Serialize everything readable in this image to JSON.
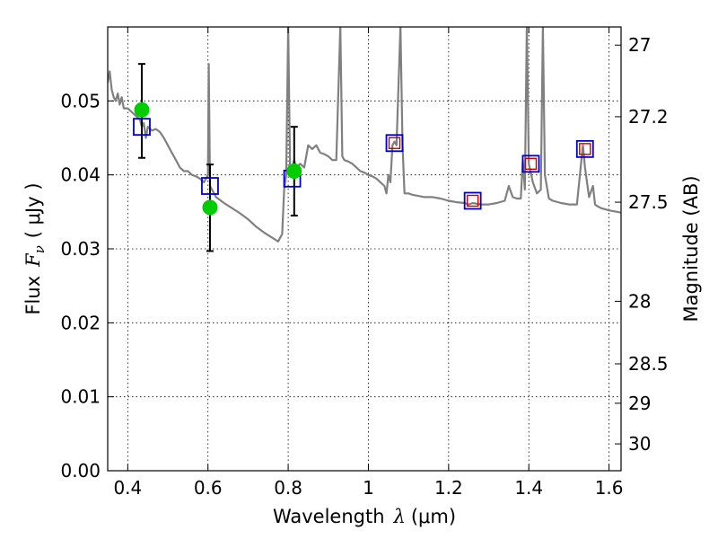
{
  "chart_data": {
    "type": "line",
    "xlabel": {
      "prefix": "Wavelength",
      "symbol": "λ",
      "unit": "(μm)"
    },
    "ylabel": {
      "prefix": "Flux",
      "symbol": "F",
      "subscript": "ν",
      "unit": "( μJy )"
    },
    "y2label": "Magnitude (AB)",
    "xlim": [
      0.35,
      1.63
    ],
    "ylim": [
      0.0,
      0.06
    ],
    "grid": true,
    "x_ticks": [
      {
        "v": 0.4,
        "label": "0.4"
      },
      {
        "v": 0.6,
        "label": "0.6"
      },
      {
        "v": 0.8,
        "label": "0.8"
      },
      {
        "v": 1.0,
        "label": "1"
      },
      {
        "v": 1.2,
        "label": "1.2"
      },
      {
        "v": 1.4,
        "label": "1.4"
      },
      {
        "v": 1.6,
        "label": "1.6"
      }
    ],
    "y_ticks": [
      {
        "v": 0.0,
        "label": "0.00"
      },
      {
        "v": 0.01,
        "label": "0.01"
      },
      {
        "v": 0.02,
        "label": "0.02"
      },
      {
        "v": 0.03,
        "label": "0.03"
      },
      {
        "v": 0.04,
        "label": "0.04"
      },
      {
        "v": 0.05,
        "label": "0.05"
      }
    ],
    "y2_ticks": [
      {
        "mag": 27.0,
        "label": "27"
      },
      {
        "mag": 27.2,
        "label": "27.2"
      },
      {
        "mag": 27.5,
        "label": "27.5"
      },
      {
        "mag": 28.0,
        "label": "28"
      },
      {
        "mag": 28.5,
        "label": "28.5"
      },
      {
        "mag": 29.0,
        "label": "29"
      },
      {
        "mag": 30.0,
        "label": "30"
      }
    ],
    "colors": {
      "model": "#808080",
      "observed": "#00cc00",
      "model_band": "#0000cc",
      "model_band_inner": "#cc0000",
      "errorbar": "#000000"
    },
    "model_sed": [
      [
        0.35,
        0.0525
      ],
      [
        0.355,
        0.054
      ],
      [
        0.36,
        0.0515
      ],
      [
        0.365,
        0.0505
      ],
      [
        0.37,
        0.05
      ],
      [
        0.375,
        0.051
      ],
      [
        0.38,
        0.0495
      ],
      [
        0.385,
        0.0505
      ],
      [
        0.39,
        0.049
      ],
      [
        0.4,
        0.049
      ],
      [
        0.41,
        0.0485
      ],
      [
        0.42,
        0.048
      ],
      [
        0.43,
        0.0475
      ],
      [
        0.435,
        0.0465
      ],
      [
        0.44,
        0.047
      ],
      [
        0.445,
        0.045
      ],
      [
        0.45,
        0.0465
      ],
      [
        0.46,
        0.046
      ],
      [
        0.47,
        0.0462
      ],
      [
        0.48,
        0.0458
      ],
      [
        0.49,
        0.045
      ],
      [
        0.5,
        0.044
      ],
      [
        0.51,
        0.043
      ],
      [
        0.52,
        0.042
      ],
      [
        0.53,
        0.041
      ],
      [
        0.54,
        0.0405
      ],
      [
        0.55,
        0.0405
      ],
      [
        0.56,
        0.04
      ],
      [
        0.57,
        0.0398
      ],
      [
        0.58,
        0.0395
      ],
      [
        0.59,
        0.039
      ],
      [
        0.6,
        0.04
      ],
      [
        0.602,
        0.055
      ],
      [
        0.605,
        0.0385
      ],
      [
        0.62,
        0.037
      ],
      [
        0.64,
        0.0362
      ],
      [
        0.66,
        0.0355
      ],
      [
        0.68,
        0.0348
      ],
      [
        0.7,
        0.034
      ],
      [
        0.72,
        0.033
      ],
      [
        0.74,
        0.0322
      ],
      [
        0.76,
        0.0315
      ],
      [
        0.775,
        0.031
      ],
      [
        0.785,
        0.032
      ],
      [
        0.79,
        0.038
      ],
      [
        0.795,
        0.04
      ],
      [
        0.8,
        0.062
      ],
      [
        0.805,
        0.04
      ],
      [
        0.81,
        0.041
      ],
      [
        0.815,
        0.042
      ],
      [
        0.82,
        0.041
      ],
      [
        0.83,
        0.0415
      ],
      [
        0.84,
        0.041
      ],
      [
        0.85,
        0.044
      ],
      [
        0.86,
        0.0435
      ],
      [
        0.87,
        0.044
      ],
      [
        0.88,
        0.043
      ],
      [
        0.89,
        0.0428
      ],
      [
        0.9,
        0.0425
      ],
      [
        0.91,
        0.042
      ],
      [
        0.92,
        0.042
      ],
      [
        0.93,
        0.062
      ],
      [
        0.935,
        0.0425
      ],
      [
        0.94,
        0.042
      ],
      [
        0.95,
        0.0418
      ],
      [
        0.96,
        0.0415
      ],
      [
        0.97,
        0.041
      ],
      [
        0.98,
        0.0405
      ],
      [
        0.99,
        0.0403
      ],
      [
        1.0,
        0.04
      ],
      [
        1.01,
        0.0398
      ],
      [
        1.02,
        0.0395
      ],
      [
        1.03,
        0.039
      ],
      [
        1.04,
        0.0385
      ],
      [
        1.045,
        0.0375
      ],
      [
        1.05,
        0.04
      ],
      [
        1.055,
        0.039
      ],
      [
        1.06,
        0.044
      ],
      [
        1.065,
        0.0445
      ],
      [
        1.07,
        0.044
      ],
      [
        1.08,
        0.062
      ],
      [
        1.085,
        0.044
      ],
      [
        1.09,
        0.0375
      ],
      [
        1.1,
        0.0375
      ],
      [
        1.11,
        0.0373
      ],
      [
        1.12,
        0.0372
      ],
      [
        1.14,
        0.037
      ],
      [
        1.16,
        0.037
      ],
      [
        1.18,
        0.0368
      ],
      [
        1.2,
        0.0365
      ],
      [
        1.22,
        0.0363
      ],
      [
        1.24,
        0.0362
      ],
      [
        1.25,
        0.036
      ],
      [
        1.26,
        0.0362
      ],
      [
        1.28,
        0.036
      ],
      [
        1.3,
        0.036
      ],
      [
        1.32,
        0.0362
      ],
      [
        1.34,
        0.0365
      ],
      [
        1.35,
        0.0385
      ],
      [
        1.36,
        0.037
      ],
      [
        1.37,
        0.0368
      ],
      [
        1.38,
        0.0368
      ],
      [
        1.385,
        0.042
      ],
      [
        1.39,
        0.038
      ],
      [
        1.395,
        0.062
      ],
      [
        1.4,
        0.0415
      ],
      [
        1.41,
        0.039
      ],
      [
        1.42,
        0.0375
      ],
      [
        1.43,
        0.038
      ],
      [
        1.435,
        0.062
      ],
      [
        1.44,
        0.04
      ],
      [
        1.45,
        0.0368
      ],
      [
        1.46,
        0.0365
      ],
      [
        1.48,
        0.0362
      ],
      [
        1.5,
        0.036
      ],
      [
        1.52,
        0.036
      ],
      [
        1.535,
        0.044
      ],
      [
        1.54,
        0.041
      ],
      [
        1.55,
        0.037
      ],
      [
        1.56,
        0.0385
      ],
      [
        1.565,
        0.036
      ],
      [
        1.57,
        0.0358
      ],
      [
        1.58,
        0.0355
      ],
      [
        1.6,
        0.0352
      ],
      [
        1.62,
        0.035
      ],
      [
        1.63,
        0.0349
      ]
    ],
    "observed_points": [
      {
        "x": 0.435,
        "y": 0.0488,
        "err_lo": 0.0423,
        "err_hi": 0.055
      },
      {
        "x": 0.605,
        "y": 0.0356,
        "err_lo": 0.0297,
        "err_hi": 0.0414
      },
      {
        "x": 0.815,
        "y": 0.0405,
        "err_lo": 0.0345,
        "err_hi": 0.0465
      }
    ],
    "model_band_points": [
      {
        "x": 0.435,
        "y": 0.0465,
        "inner": false
      },
      {
        "x": 0.605,
        "y": 0.0385,
        "inner": false
      },
      {
        "x": 0.81,
        "y": 0.0395,
        "inner": false
      },
      {
        "x": 1.065,
        "y": 0.0443,
        "inner": true
      },
      {
        "x": 1.26,
        "y": 0.0365,
        "inner": true
      },
      {
        "x": 1.405,
        "y": 0.0415,
        "inner": true
      },
      {
        "x": 1.54,
        "y": 0.0435,
        "inner": true
      }
    ]
  }
}
